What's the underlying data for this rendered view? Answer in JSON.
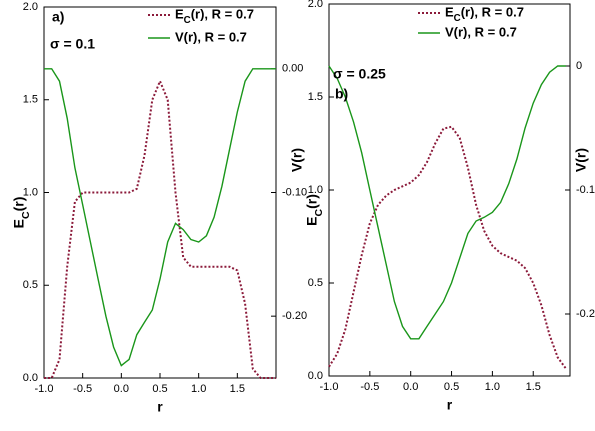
{
  "chart_data": [
    {
      "type": "line",
      "panel_label": "a)",
      "annotation": "σ = 0.1",
      "xlabel": "r",
      "ylabel": "EC(r)",
      "y2label": "V(r)",
      "xlim": [
        -1,
        2
      ],
      "ylim": [
        0,
        2
      ],
      "y2lim": [
        -0.25,
        0.05
      ],
      "xticks": [
        {
          "value": -1,
          "label": "-1.0"
        },
        -0.5,
        {
          "value": 0,
          "label": "0.0"
        },
        0.5,
        {
          "value": 1,
          "label": "1.0"
        },
        1.5
      ],
      "yticks": [
        {
          "value": 0,
          "label": "0.0"
        },
        0.5,
        {
          "value": 1,
          "label": "1.0"
        },
        1.5,
        {
          "value": 2,
          "label": "2.0"
        }
      ],
      "y2ticks": [
        {
          "value": 0,
          "label": "0.00"
        },
        {
          "value": -0.1,
          "label": "-0.10"
        },
        {
          "value": -0.2,
          "label": "-0.20"
        }
      ],
      "x": [
        -1.0,
        -0.9,
        -0.8,
        -0.7,
        -0.6,
        -0.5,
        -0.4,
        -0.3,
        -0.2,
        -0.1,
        0.0,
        0.1,
        0.2,
        0.3,
        0.4,
        0.5,
        0.6,
        0.7,
        0.8,
        0.9,
        1.0,
        1.1,
        1.2,
        1.3,
        1.4,
        1.5,
        1.6,
        1.7,
        1.8,
        1.9,
        2.0
      ],
      "series": [
        {
          "name": "EC(r), R = 0.7",
          "color": "#8b1a3a",
          "dash": true,
          "values": [
            0,
            0,
            0.1,
            0.6,
            0.95,
            1.0,
            1.0,
            1.0,
            1.0,
            1.0,
            1.0,
            1.0,
            1.02,
            1.2,
            1.5,
            1.6,
            1.5,
            1.0,
            0.65,
            0.6,
            0.6,
            0.6,
            0.6,
            0.6,
            0.6,
            0.58,
            0.4,
            0.05,
            0,
            0,
            0
          ]
        },
        {
          "name": "V(r), R = 0.7",
          "color": "#1a961a",
          "axis": "y2",
          "values": [
            0,
            0,
            -0.01,
            -0.04,
            -0.08,
            -0.11,
            -0.14,
            -0.17,
            -0.2,
            -0.225,
            -0.24,
            -0.235,
            -0.215,
            -0.205,
            -0.195,
            -0.17,
            -0.14,
            -0.125,
            -0.13,
            -0.138,
            -0.14,
            -0.135,
            -0.12,
            -0.095,
            -0.065,
            -0.035,
            -0.01,
            0,
            0,
            0,
            0
          ]
        }
      ]
    },
    {
      "type": "line",
      "panel_label": "b)",
      "annotation": "σ = 0.25",
      "xlabel": "r",
      "ylabel": "EC(r)",
      "y2label": "V(r)",
      "xlim": [
        -1,
        1.95
      ],
      "ylim": [
        0,
        2
      ],
      "y2lim": [
        -0.25,
        0.05
      ],
      "xticks": [
        {
          "value": -1,
          "label": "-1.0"
        },
        -0.5,
        {
          "value": 0,
          "label": "0.0"
        },
        0.5,
        {
          "value": 1,
          "label": "1.0"
        },
        1.5
      ],
      "yticks": [
        {
          "value": 0,
          "label": "0.0"
        },
        0.5,
        {
          "value": 1,
          "label": "1.0"
        },
        1.5,
        {
          "value": 2,
          "label": "2.0"
        }
      ],
      "y2ticks": [
        0,
        -0.1,
        -0.2
      ],
      "x": [
        -1.0,
        -0.9,
        -0.8,
        -0.7,
        -0.6,
        -0.5,
        -0.4,
        -0.3,
        -0.2,
        -0.1,
        0.0,
        0.1,
        0.2,
        0.3,
        0.4,
        0.5,
        0.6,
        0.7,
        0.8,
        0.9,
        1.0,
        1.1,
        1.2,
        1.3,
        1.4,
        1.5,
        1.6,
        1.7,
        1.8,
        1.9
      ],
      "series": [
        {
          "name": "EC(r), R = 0.7",
          "color": "#8b1a3a",
          "dash": true,
          "values": [
            0.05,
            0.12,
            0.25,
            0.45,
            0.65,
            0.82,
            0.92,
            0.97,
            1.0,
            1.02,
            1.04,
            1.08,
            1.15,
            1.25,
            1.33,
            1.34,
            1.28,
            1.12,
            0.92,
            0.78,
            0.7,
            0.66,
            0.64,
            0.62,
            0.58,
            0.5,
            0.38,
            0.22,
            0.1,
            0.04
          ]
        },
        {
          "name": "V(r), R = 0.7",
          "color": "#1a961a",
          "axis": "y2",
          "values": [
            0,
            -0.01,
            -0.025,
            -0.045,
            -0.07,
            -0.1,
            -0.13,
            -0.16,
            -0.19,
            -0.21,
            -0.22,
            -0.22,
            -0.21,
            -0.2,
            -0.19,
            -0.175,
            -0.155,
            -0.135,
            -0.125,
            -0.122,
            -0.118,
            -0.11,
            -0.095,
            -0.075,
            -0.05,
            -0.03,
            -0.015,
            -0.005,
            0,
            0
          ]
        }
      ]
    }
  ]
}
